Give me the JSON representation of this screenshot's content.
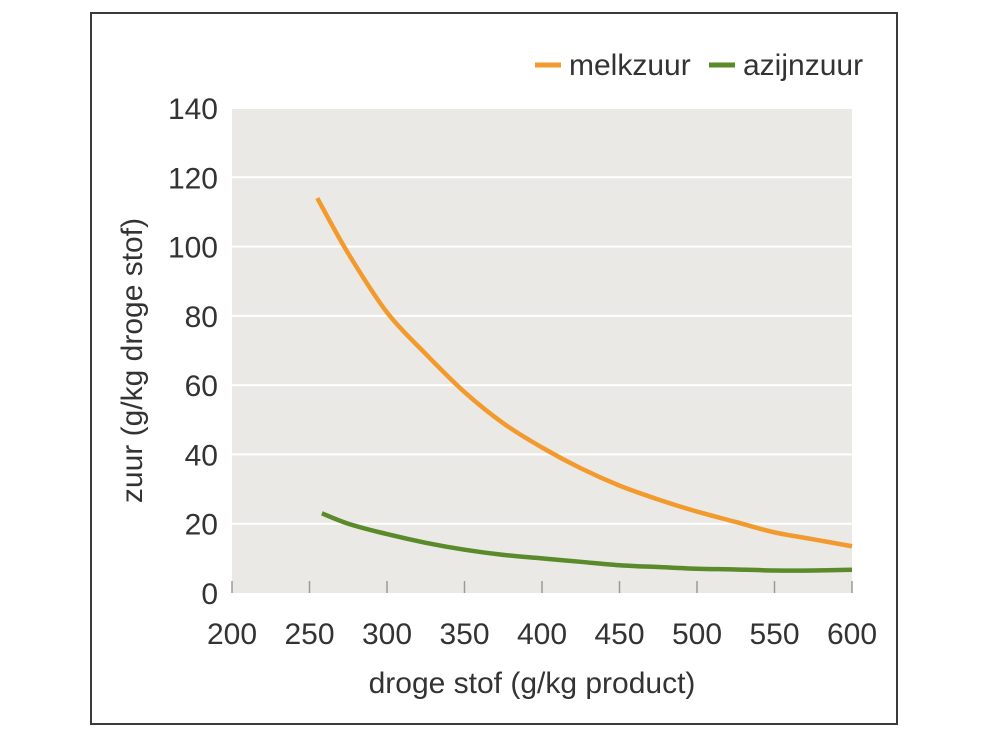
{
  "chart_data": {
    "type": "line",
    "xlabel": "droge stof (g/kg product)",
    "ylabel": "zuur (g/kg droge stof)",
    "xlim": [
      200,
      600
    ],
    "ylim": [
      0,
      140
    ],
    "xticks": [
      200,
      250,
      300,
      350,
      400,
      450,
      500,
      550,
      600
    ],
    "yticks": [
      0,
      20,
      40,
      60,
      80,
      100,
      120,
      140
    ],
    "grid": "horizontal",
    "legend": "top-right",
    "plot_background": "#ebe9e5",
    "series": [
      {
        "name": "melkzuur",
        "color": "#f29a2e",
        "x": [
          255,
          275,
          300,
          325,
          350,
          375,
          400,
          425,
          450,
          475,
          500,
          525,
          550,
          575,
          600
        ],
        "y": [
          114,
          98,
          81,
          69,
          58,
          49,
          42,
          36,
          31,
          27,
          23.5,
          20.5,
          17.5,
          15.5,
          13.5
        ]
      },
      {
        "name": "azijnzuur",
        "color": "#5a8a2a",
        "x": [
          258,
          275,
          300,
          325,
          350,
          375,
          400,
          425,
          450,
          475,
          500,
          525,
          550,
          575,
          600
        ],
        "y": [
          23,
          20,
          17,
          14.5,
          12.5,
          11,
          10,
          9,
          8,
          7.5,
          7,
          6.8,
          6.5,
          6.5,
          6.7
        ]
      }
    ]
  }
}
